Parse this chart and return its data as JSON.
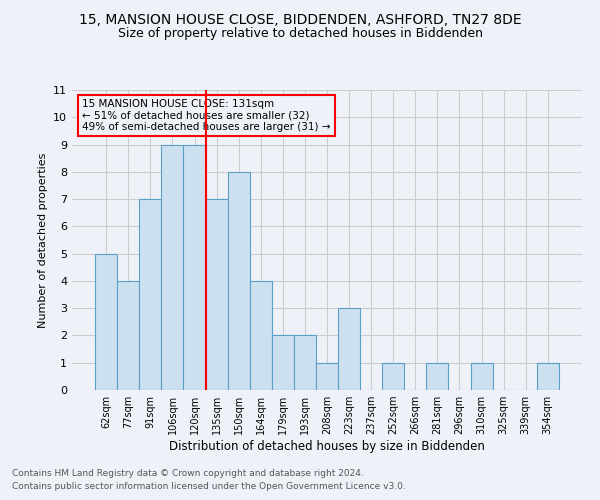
{
  "title": "15, MANSION HOUSE CLOSE, BIDDENDEN, ASHFORD, TN27 8DE",
  "subtitle": "Size of property relative to detached houses in Biddenden",
  "xlabel": "Distribution of detached houses by size in Biddenden",
  "ylabel": "Number of detached properties",
  "footnote1": "Contains HM Land Registry data © Crown copyright and database right 2024.",
  "footnote2": "Contains public sector information licensed under the Open Government Licence v3.0.",
  "bin_labels": [
    "62sqm",
    "77sqm",
    "91sqm",
    "106sqm",
    "120sqm",
    "135sqm",
    "150sqm",
    "164sqm",
    "179sqm",
    "193sqm",
    "208sqm",
    "223sqm",
    "237sqm",
    "252sqm",
    "266sqm",
    "281sqm",
    "296sqm",
    "310sqm",
    "325sqm",
    "339sqm",
    "354sqm"
  ],
  "bar_heights": [
    5,
    4,
    7,
    9,
    9,
    7,
    8,
    4,
    2,
    2,
    1,
    3,
    0,
    1,
    0,
    1,
    0,
    1,
    0,
    0,
    1
  ],
  "bar_color": "#cce0f0",
  "bar_edge_color": "#5a9fc8",
  "grid_color": "#cccccc",
  "annotation_line1": "15 MANSION HOUSE CLOSE: 131sqm",
  "annotation_line2": "← 51% of detached houses are smaller (32)",
  "annotation_line3": "49% of semi-detached houses are larger (31) →",
  "reference_line_x": 4.5,
  "ylim": [
    0,
    11
  ],
  "yticks": [
    0,
    1,
    2,
    3,
    4,
    5,
    6,
    7,
    8,
    9,
    10,
    11
  ],
  "background_color": "#eef2f8",
  "title_fontsize": 10,
  "subtitle_fontsize": 9
}
